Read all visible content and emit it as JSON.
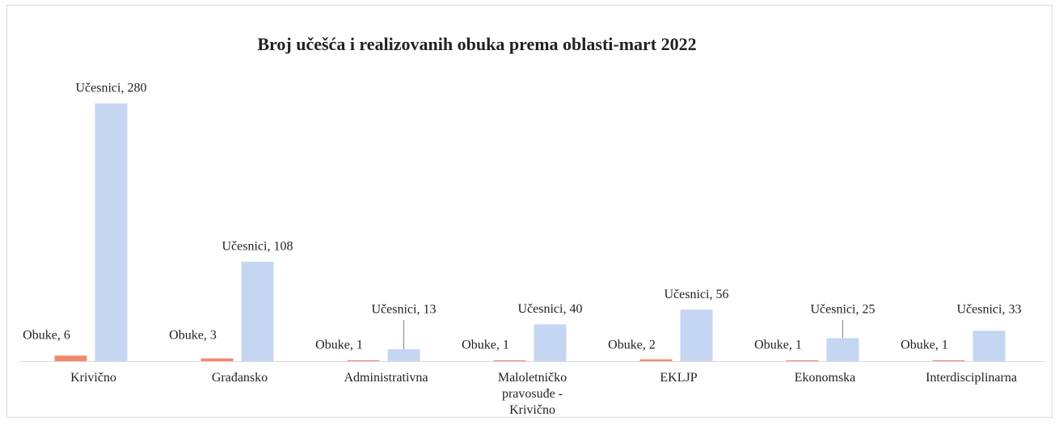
{
  "chart_data": {
    "type": "bar",
    "title": "Broj učešća i realizovanih obuka prema oblasti-mart 2022",
    "categories": [
      "Krivično",
      "Građansko",
      "Administrativna",
      "Maloletničko pravosuđe - Krivično",
      "EKLJP",
      "Ekonomska",
      "Interdisciplinarna"
    ],
    "series": [
      {
        "name": "Obuke",
        "color": "#f4896b",
        "values": [
          6,
          3,
          1,
          1,
          2,
          1,
          1
        ],
        "value_labels": [
          "Obuke, 6",
          "Obuke, 3",
          "Obuke, 1",
          "Obuke, 1",
          "Obuke, 2",
          "Obuke, 1",
          "Obuke, 1"
        ]
      },
      {
        "name": "Učesnici",
        "color": "#c5d6f2",
        "values": [
          280,
          108,
          13,
          40,
          56,
          25,
          33
        ],
        "value_labels": [
          "Učesnici, 280",
          "Učesnici, 108",
          "Učesnici, 13",
          "Učesnici, 40",
          "Učesnici, 56",
          "Učesnici, 25",
          "Učesnici, 33"
        ]
      }
    ]
  }
}
